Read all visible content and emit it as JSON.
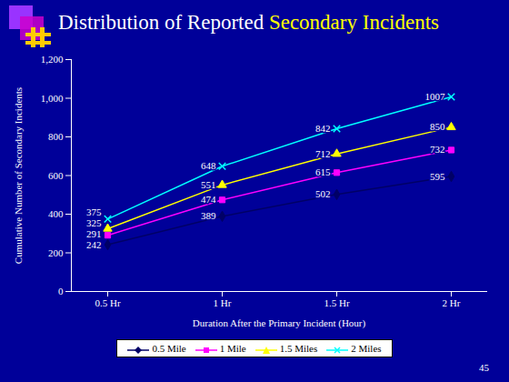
{
  "chart_data": {
    "type": "line",
    "title": "Distribution of Reported Secondary Incidents",
    "x_label": "Duration After the Primary Incident (Hour)",
    "y_label": "Cumulative Number of Secondary Incidents",
    "categories": [
      "0.5 Hr",
      "1 Hr",
      "1.5 Hr",
      "2 Hr"
    ],
    "series": [
      {
        "name": "0.5 Mile",
        "color": "#000066",
        "marker": "diamond",
        "values": [
          242,
          389,
          502,
          595
        ]
      },
      {
        "name": "1 Mile",
        "color": "#ff00ff",
        "marker": "square",
        "values": [
          291,
          474,
          615,
          732
        ]
      },
      {
        "name": "1.5 Miles",
        "color": "#ffff00",
        "marker": "triangle",
        "values": [
          325,
          551,
          712,
          850
        ]
      },
      {
        "name": "2 Miles",
        "color": "#00ffff",
        "marker": "x",
        "values": [
          375,
          648,
          842,
          1007
        ]
      }
    ],
    "ylim": [
      0,
      1200
    ],
    "yticks": [
      0,
      200,
      400,
      600,
      800,
      {
        "value": 1000,
        "label": "1,000"
      },
      {
        "value": 1200,
        "label": "1,200"
      }
    ],
    "grid": false,
    "legend": "bottom",
    "data_labels": true,
    "annotations": [
      "45"
    ]
  }
}
